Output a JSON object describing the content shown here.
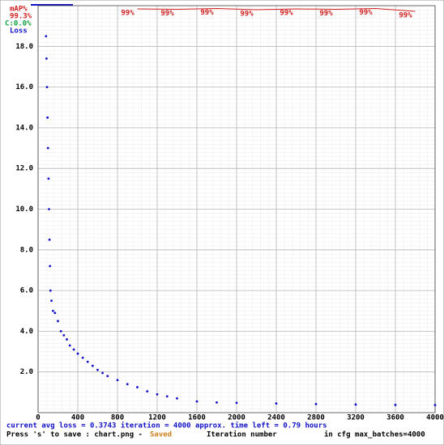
{
  "chart_data": {
    "type": "scatter",
    "x_label": "Iteration number",
    "xlim": [
      0,
      4000
    ],
    "xticks": [
      0,
      400,
      800,
      1200,
      1600,
      2000,
      2400,
      2800,
      3200,
      3600,
      4000
    ],
    "ylim": [
      0,
      20
    ],
    "yticks": [
      {
        "value": 2,
        "label": "2.0"
      },
      {
        "value": 4,
        "label": "4.0"
      },
      {
        "value": 6,
        "label": "6.0"
      },
      {
        "value": 8,
        "label": "8.0"
      },
      {
        "value": 10,
        "label": "10.0"
      },
      {
        "value": 12,
        "label": "12.0"
      },
      {
        "value": 14,
        "label": "14.0"
      },
      {
        "value": 16,
        "label": "16.0"
      },
      {
        "value": 18,
        "label": "18.0"
      }
    ],
    "y2lim": [
      0,
      100
    ],
    "grid": true,
    "legend": {
      "map_title": "mAP%",
      "map_best": "99.3%",
      "c_label": "C:0.0%",
      "loss_label": "Loss"
    },
    "series": [
      {
        "name": "Loss",
        "color": "#1010c8",
        "x": [
          80,
          85,
          90,
          95,
          100,
          105,
          110,
          115,
          120,
          125,
          135,
          150,
          170,
          200,
          230,
          260,
          290,
          320,
          360,
          400,
          450,
          500,
          550,
          600,
          650,
          700,
          800,
          900,
          1000,
          1100,
          1200,
          1300,
          1400,
          1600,
          1800,
          2000,
          2400,
          2800,
          3200,
          3600,
          4000
        ],
        "values": [
          18.5,
          17.4,
          16.0,
          14.5,
          13.0,
          11.5,
          10.0,
          8.5,
          7.2,
          6.0,
          5.5,
          5.0,
          4.9,
          4.5,
          4.0,
          3.8,
          3.6,
          3.3,
          3.1,
          2.9,
          2.7,
          2.5,
          2.3,
          2.1,
          1.95,
          1.8,
          1.6,
          1.4,
          1.25,
          1.05,
          0.9,
          0.8,
          0.7,
          0.55,
          0.5,
          0.48,
          0.45,
          0.42,
          0.4,
          0.38,
          0.37
        ]
      },
      {
        "name": "mAP%",
        "color": "#d02020",
        "axis": "y2",
        "x": [
          1000,
          1400,
          1800,
          2200,
          2600,
          3000,
          3400,
          3800
        ],
        "values": [
          99.2,
          99.1,
          99.3,
          99.0,
          99.2,
          99.1,
          99.3,
          98.6
        ],
        "value_labels": [
          "99%",
          "99%",
          "99%",
          "99%",
          "99%",
          "99%",
          "99%",
          "99%"
        ]
      }
    ],
    "status": {
      "line1": "current avg loss = 0.3743    iteration = 4000    approx. time left = 0.79 hours",
      "save": "Press 's' to save : chart.png - ",
      "saved": "Saved",
      "max_batches": "in cfg max_batches=4000"
    }
  }
}
